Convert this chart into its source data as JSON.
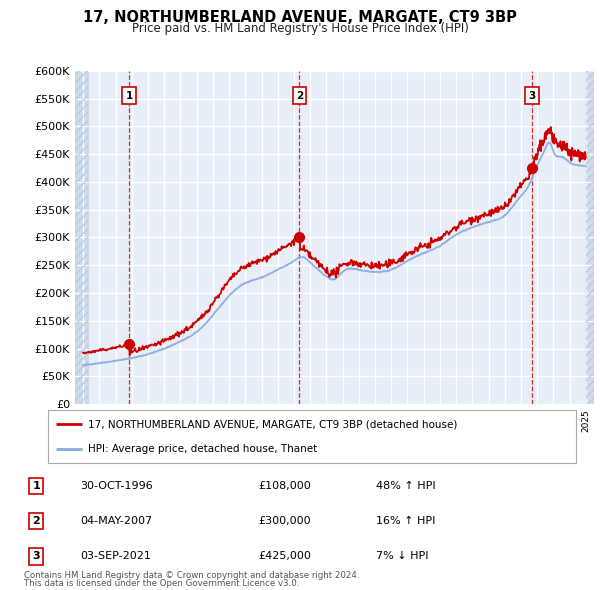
{
  "title": "17, NORTHUMBERLAND AVENUE, MARGATE, CT9 3BP",
  "subtitle": "Price paid vs. HM Land Registry's House Price Index (HPI)",
  "ylabel_ticks": [
    "£0",
    "£50K",
    "£100K",
    "£150K",
    "£200K",
    "£250K",
    "£300K",
    "£350K",
    "£400K",
    "£450K",
    "£500K",
    "£550K",
    "£600K"
  ],
  "ytick_values": [
    0,
    50000,
    100000,
    150000,
    200000,
    250000,
    300000,
    350000,
    400000,
    450000,
    500000,
    550000,
    600000
  ],
  "xmin": 1993.5,
  "xmax": 2025.5,
  "ymin": 0,
  "ymax": 600000,
  "sale_color": "#cc0000",
  "hpi_color": "#88aadd",
  "bg_plot": "#e8eef8",
  "bg_hatch_color": "#d0daea",
  "grid_color": "#ffffff",
  "sale_dates": [
    1996.83,
    2007.34,
    2021.67
  ],
  "sale_prices": [
    108000,
    300000,
    425000
  ],
  "sale_labels": [
    "1",
    "2",
    "3"
  ],
  "legend_sale": "17, NORTHUMBERLAND AVENUE, MARGATE, CT9 3BP (detached house)",
  "legend_hpi": "HPI: Average price, detached house, Thanet",
  "table_rows": [
    {
      "num": "1",
      "date": "30-OCT-1996",
      "price": "£108,000",
      "change": "48% ↑ HPI"
    },
    {
      "num": "2",
      "date": "04-MAY-2007",
      "price": "£300,000",
      "change": "16% ↑ HPI"
    },
    {
      "num": "3",
      "date": "03-SEP-2021",
      "price": "£425,000",
      "change": "7% ↓ HPI"
    }
  ],
  "footnote1": "Contains HM Land Registry data © Crown copyright and database right 2024.",
  "footnote2": "This data is licensed under the Open Government Licence v3.0.",
  "vline_color": "#cc0000",
  "hatch_left_end": 1994.3,
  "hatch_right_start": 2025.0
}
